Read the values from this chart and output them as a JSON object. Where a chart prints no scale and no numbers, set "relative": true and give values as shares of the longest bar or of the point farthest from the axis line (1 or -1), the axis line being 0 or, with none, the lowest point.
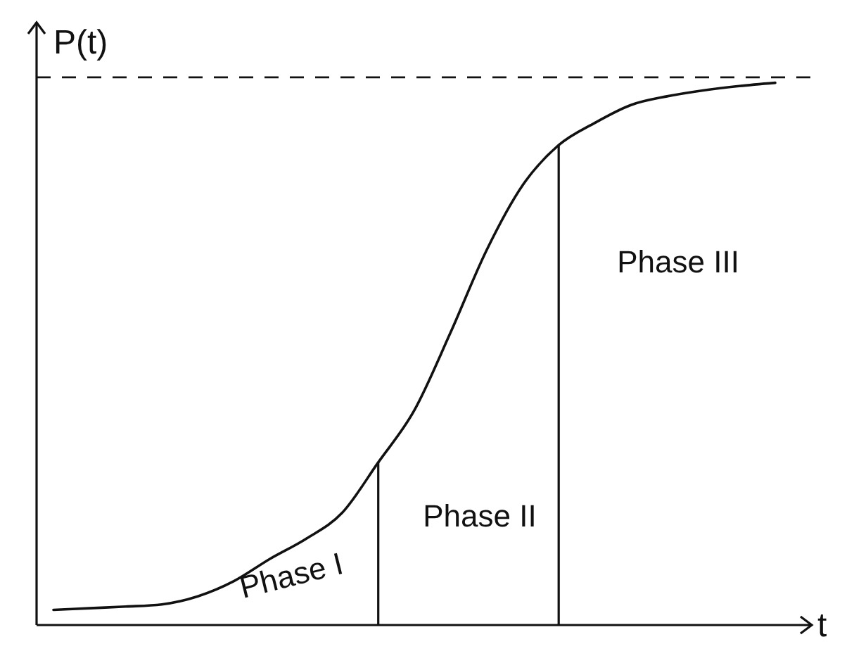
{
  "chart_data": {
    "type": "line",
    "relative": true,
    "xlabel": "t",
    "ylabel": "P(t)",
    "categories": [
      null,
      null,
      null,
      null,
      null,
      null,
      null,
      null,
      null,
      null,
      null,
      null,
      null,
      null,
      null,
      null,
      null,
      null,
      null,
      null,
      null
    ],
    "series": [
      {
        "color": "#111111",
        "values": [
          0.028,
          0.031,
          0.034,
          0.038,
          0.053,
          0.081,
          0.122,
          0.159,
          0.207,
          0.3,
          0.396,
          0.539,
          0.691,
          0.811,
          0.885,
          0.926,
          0.959,
          0.975,
          0.986,
          0.994,
          1
        ]
      }
    ],
    "ref_lines": [
      {
        "axis": "y",
        "value": 1.01,
        "line_style": "dashed",
        "color": "#111111"
      }
    ],
    "annotations": [
      "Phase I",
      "Phase II",
      "Phase III"
    ],
    "line_style": "solid",
    "marker": "none"
  }
}
